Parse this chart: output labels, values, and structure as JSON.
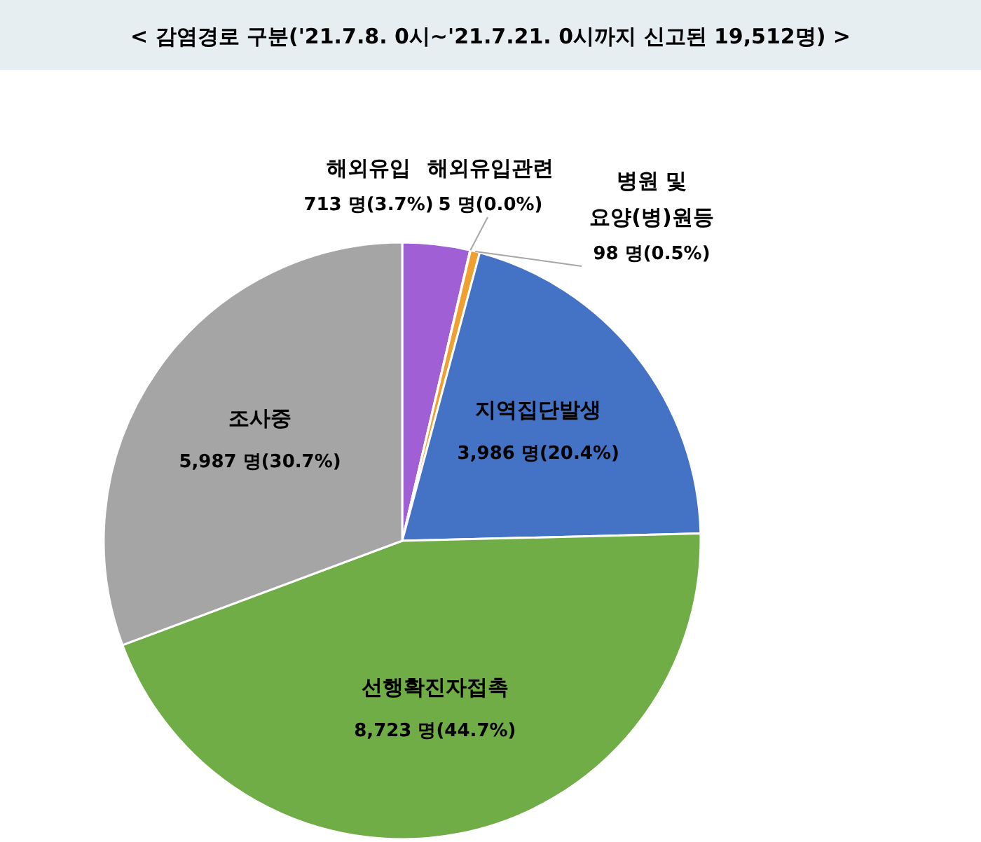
{
  "chart_data": {
    "type": "pie",
    "title": "< 감염경로 구분('21.7.8. 0시~'21.7.21. 0시까지 신고된 19,512명) >",
    "categories": [
      "해외유입",
      "해외유입관련",
      "병원 및 요양(병)원등",
      "지역집단발생",
      "선행확진자접촉",
      "조사중"
    ],
    "values": [
      713,
      5,
      98,
      3986,
      8723,
      5987
    ],
    "value_labels": [
      "713 명(3.7%)",
      "5 명(0.0%)",
      "98 명(0.5%)",
      "3,986 명(20.4%)",
      "8,723 명(44.7%)",
      "5,987 명(30.7%)"
    ],
    "colors": [
      "#a05fd4",
      "#f2b21f",
      "#f0a030",
      "#4472c4",
      "#70ad47",
      "#a5a5a5"
    ]
  }
}
